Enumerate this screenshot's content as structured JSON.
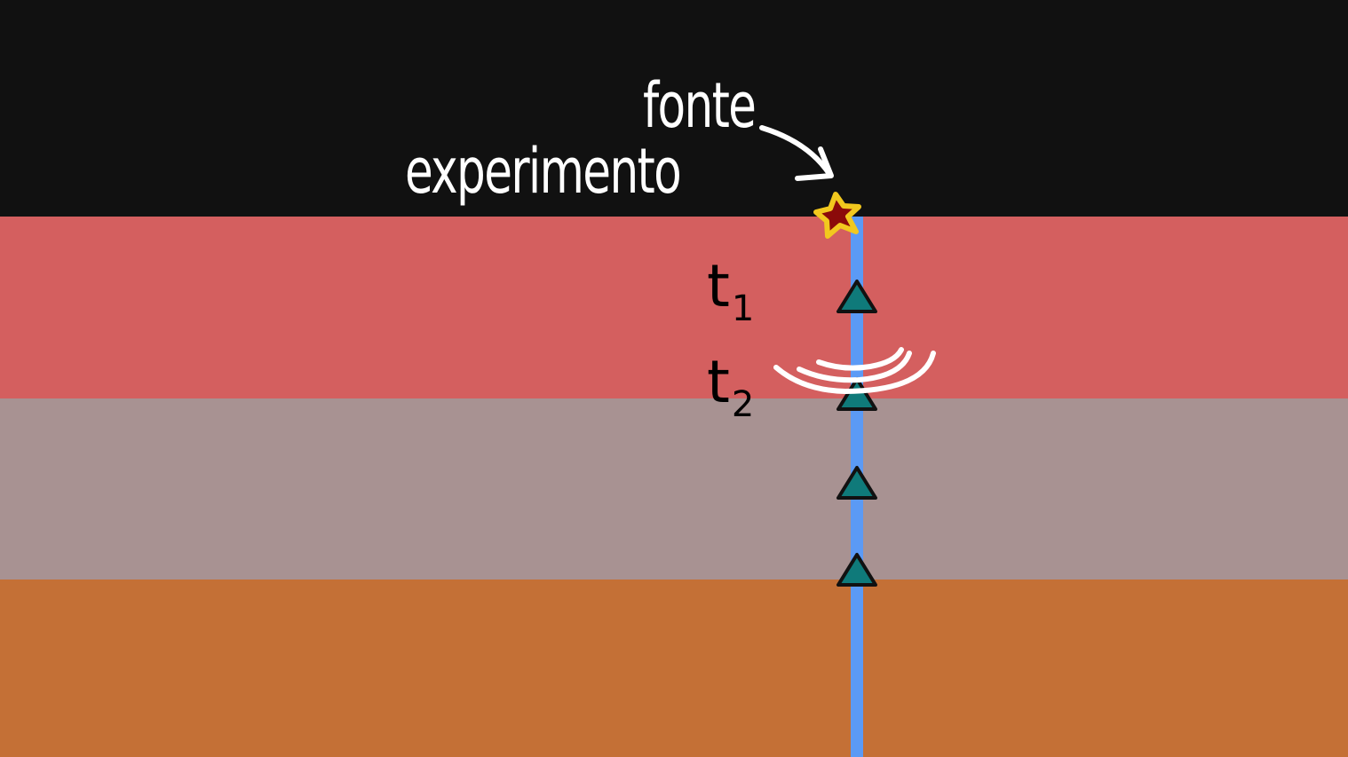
{
  "labels": {
    "source": "fonte",
    "experiment": "experimento",
    "t1_base": "t",
    "t1_sub": "1",
    "t2_base": "t",
    "t2_sub": "2"
  },
  "colors": {
    "sky": "#111111",
    "layer_1": "#d45f5f",
    "layer_2": "#a89292",
    "layer_3": "#c47036",
    "borehole": "#5b9af5",
    "receiver": "#0f7a7a",
    "source_star_fill": "#8b0a0a",
    "source_star_outline": "#f2c81e",
    "annotation": "#ffffff"
  },
  "icons": {
    "source": "star-icon",
    "receiver": "triangle-icon",
    "arrow": "curved-arrow-icon",
    "wave": "wavefront-arcs"
  },
  "receivers_count": 4
}
